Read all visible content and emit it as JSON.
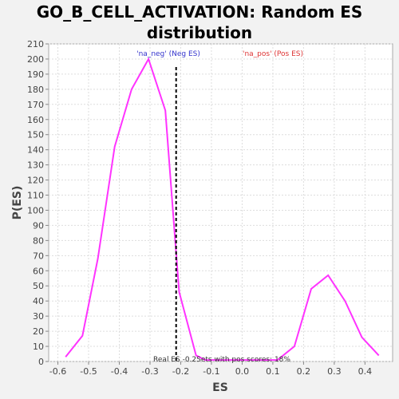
{
  "chart_data": {
    "type": "line",
    "title_line1": "GO_B_CELL_ACTIVATION: Random ES",
    "title_line2": "distribution",
    "xlabel": "ES",
    "ylabel": "P(ES)",
    "xlim": [
      -0.63,
      0.49
    ],
    "ylim": [
      0,
      210
    ],
    "x_ticks": [
      -0.6,
      -0.5,
      -0.4,
      -0.3,
      -0.2,
      -0.1,
      0.0,
      0.1,
      0.2,
      0.3,
      0.4
    ],
    "x_tick_labels": [
      "-0.6",
      "-0.5",
      "-0.4",
      "-0.3",
      "-0.2",
      "-0.1",
      "0.0",
      "0.1",
      "0.2",
      "0.3",
      "0.4"
    ],
    "y_ticks": [
      0,
      10,
      20,
      30,
      40,
      50,
      60,
      70,
      80,
      90,
      100,
      110,
      120,
      130,
      140,
      150,
      160,
      170,
      180,
      190,
      200,
      210
    ],
    "grid": true,
    "series": [
      {
        "color": "#ff33ff",
        "x": [
          -0.575,
          -0.52,
          -0.47,
          -0.415,
          -0.36,
          -0.305,
          -0.25,
          -0.22,
          -0.205,
          -0.15,
          -0.12,
          0.0,
          0.115,
          0.17,
          0.225,
          0.28,
          0.335,
          0.39,
          0.445
        ],
        "y": [
          3,
          17,
          68,
          142,
          180,
          200,
          166,
          85,
          46,
          4,
          1,
          1,
          1,
          10,
          48,
          57,
          40,
          16,
          4
        ]
      }
    ],
    "real_es_line": {
      "x": -0.215,
      "color": "#000000",
      "style": "dashed"
    },
    "legend": {
      "neg_label": "'na_neg' (Neg ES)",
      "neg_color": "#3333cc",
      "pos_label": "'na_pos' (Pos ES)",
      "pos_color": "#dd3333"
    },
    "annotation": "Real ES -0.2Sets with pos scores: 18%"
  }
}
